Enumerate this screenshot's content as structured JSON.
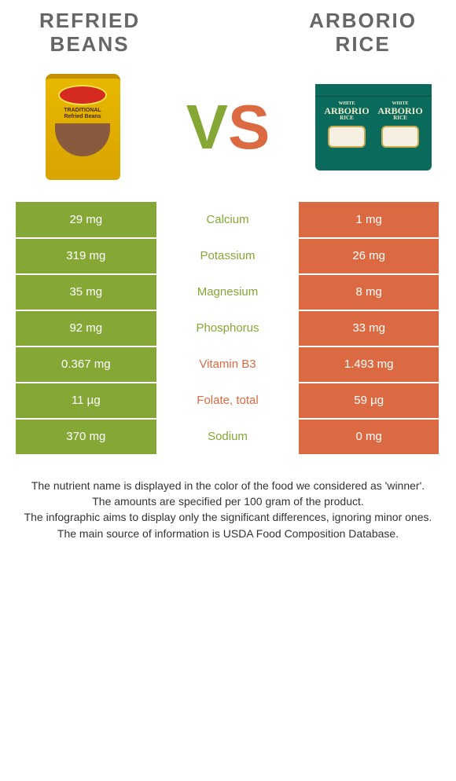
{
  "colors": {
    "left": "#84a736",
    "right": "#db6a42",
    "header_text": "#666666",
    "background": "#ffffff",
    "footer_text": "#333333"
  },
  "typography": {
    "header_fontsize": 26,
    "row_fontsize": 15,
    "footer_fontsize": 14,
    "vs_fontsize": 80
  },
  "header": {
    "left_title": "Refried\nBeans",
    "right_title": "Arborio\nRice"
  },
  "vs": {
    "v": "V",
    "s": "S"
  },
  "products": {
    "left": {
      "name": "refried-beans-can",
      "label_line1": "TRADITIONAL",
      "label_line2": "Refried Beans"
    },
    "right": {
      "name": "arborio-rice-bags",
      "bag_small": "WHITE",
      "bag_big": "ARBORIO",
      "bag_sub": "RICE"
    }
  },
  "rows": [
    {
      "left": "29 mg",
      "nutrient": "Calcium",
      "right": "1 mg",
      "winner": "left"
    },
    {
      "left": "319 mg",
      "nutrient": "Potassium",
      "right": "26 mg",
      "winner": "left"
    },
    {
      "left": "35 mg",
      "nutrient": "Magnesium",
      "right": "8 mg",
      "winner": "left"
    },
    {
      "left": "92 mg",
      "nutrient": "Phosphorus",
      "right": "33 mg",
      "winner": "left"
    },
    {
      "left": "0.367 mg",
      "nutrient": "Vitamin B3",
      "right": "1.493 mg",
      "winner": "right"
    },
    {
      "left": "11 µg",
      "nutrient": "Folate, total",
      "right": "59 µg",
      "winner": "right"
    },
    {
      "left": "370 mg",
      "nutrient": "Sodium",
      "right": "0 mg",
      "winner": "left"
    }
  ],
  "footer": {
    "line1": "The nutrient name is displayed in the color of the food we considered as 'winner'.",
    "line2": "The amounts are specified per 100 gram of the product.",
    "line3": "The infographic aims to display only the significant differences, ignoring minor ones.",
    "line4": "The main source of information is USDA Food Composition Database."
  }
}
